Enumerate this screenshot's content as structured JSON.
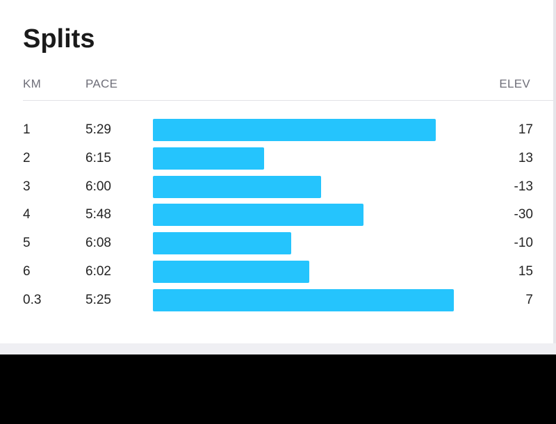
{
  "title": "Splits",
  "headers": {
    "km": "KM",
    "pace": "PACE",
    "elev": "ELEV"
  },
  "colors": {
    "bar": "#25c4fd"
  },
  "chart_data": {
    "type": "bar",
    "orientation": "horizontal",
    "categories": [
      "1",
      "2",
      "3",
      "4",
      "5",
      "6",
      "0.3"
    ],
    "series": [
      {
        "name": "PACE",
        "values": [
          "5:29",
          "6:15",
          "6:00",
          "5:48",
          "6:08",
          "6:02",
          "5:25"
        ]
      },
      {
        "name": "ELEV",
        "values": [
          17,
          13,
          -13,
          -30,
          -10,
          15,
          7
        ]
      }
    ],
    "bar_fraction": [
      0.94,
      0.37,
      0.56,
      0.7,
      0.46,
      0.52,
      1.0
    ],
    "grid": false
  }
}
